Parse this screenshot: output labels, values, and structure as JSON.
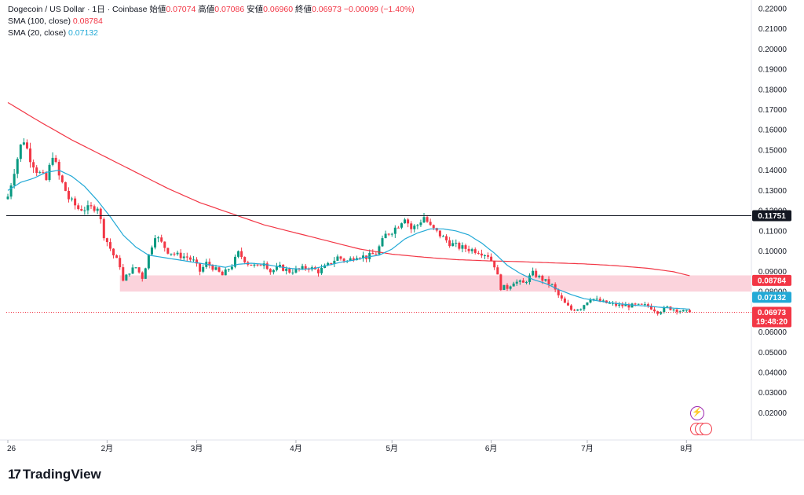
{
  "legend": {
    "symbol": "Dogecoin / US Dollar · 1日 · Coinbase",
    "open_label": "始値",
    "open": "0.07074",
    "high_label": "高値",
    "high": "0.07086",
    "low_label": "安値",
    "low": "0.06960",
    "close_label": "終値",
    "close": "0.06973",
    "change": "−0.00099 (−1.40%)",
    "sma100_label": "SMA (100, close)",
    "sma100_value": "0.08784",
    "sma20_label": "SMA (20, close)",
    "sma20_value": "0.07132"
  },
  "brand": {
    "name": "TradingView",
    "logo_icon": "tradingview-logo-icon"
  },
  "colors": {
    "up": "#089981",
    "down": "#f23645",
    "sma100": "#f23645",
    "sma20": "#22a9d6",
    "zone": "#fbd3dc",
    "hline": "#131722"
  },
  "chart_data": {
    "type": "candlestick",
    "title": "Dogecoin / US Dollar · 1日 · Coinbase",
    "y_ticks": [
      "0.22000",
      "0.21000",
      "0.20000",
      "0.19000",
      "0.18000",
      "0.17000",
      "0.16000",
      "0.15000",
      "0.14000",
      "0.13000",
      "0.12000",
      "0.11000",
      "0.10000",
      "0.09000",
      "0.08000",
      "0.07000",
      "0.06000",
      "0.05000",
      "0.04000",
      "0.03000",
      "0.02000"
    ],
    "y_range": [
      0.01512,
      0.2215
    ],
    "x_tick_labels": [
      "26",
      "2月",
      "3月",
      "4月",
      "5月",
      "6月",
      "7月",
      "8月"
    ],
    "x_tick_days": [
      0,
      31,
      59,
      90,
      120,
      151,
      181,
      212
    ],
    "last_day": 213,
    "horizontal_line": {
      "value": 0.11751,
      "label": "0.11751"
    },
    "zone": {
      "from": 0.08,
      "to": 0.088,
      "start_day": 35
    },
    "price_tags": [
      {
        "label": "0.08784",
        "value": 0.08784,
        "color": "#f23645"
      },
      {
        "label": "0.07132",
        "value": 0.07132,
        "color": "#22a9d6"
      },
      {
        "label": "0.06973",
        "value": 0.06973,
        "color": "#f23645",
        "sub": "19:48:20"
      }
    ],
    "close_anchors": [
      [
        0,
        0.127
      ],
      [
        2,
        0.14
      ],
      [
        4,
        0.152
      ],
      [
        5,
        0.155
      ],
      [
        7,
        0.146
      ],
      [
        9,
        0.14
      ],
      [
        12,
        0.135
      ],
      [
        14,
        0.148
      ],
      [
        16,
        0.137
      ],
      [
        18,
        0.13
      ],
      [
        19,
        0.126
      ],
      [
        22,
        0.121
      ],
      [
        25,
        0.121
      ],
      [
        28,
        0.122
      ],
      [
        30,
        0.108
      ],
      [
        33,
        0.098
      ],
      [
        35,
        0.093
      ],
      [
        36,
        0.085
      ],
      [
        38,
        0.09
      ],
      [
        40,
        0.092
      ],
      [
        42,
        0.087
      ],
      [
        44,
        0.098
      ],
      [
        46,
        0.108
      ],
      [
        48,
        0.104
      ],
      [
        50,
        0.1
      ],
      [
        53,
        0.098
      ],
      [
        56,
        0.097
      ],
      [
        58,
        0.095
      ],
      [
        60,
        0.09
      ],
      [
        62,
        0.094
      ],
      [
        64,
        0.092
      ],
      [
        67,
        0.088
      ],
      [
        70,
        0.093
      ],
      [
        72,
        0.099
      ],
      [
        75,
        0.094
      ],
      [
        78,
        0.092
      ],
      [
        80,
        0.095
      ],
      [
        82,
        0.09
      ],
      [
        85,
        0.092
      ],
      [
        88,
        0.09
      ],
      [
        91,
        0.091
      ],
      [
        94,
        0.092
      ],
      [
        97,
        0.09
      ],
      [
        100,
        0.093
      ],
      [
        103,
        0.097
      ],
      [
        106,
        0.095
      ],
      [
        109,
        0.098
      ],
      [
        112,
        0.097
      ],
      [
        115,
        0.099
      ],
      [
        118,
        0.108
      ],
      [
        120,
        0.11
      ],
      [
        122,
        0.113
      ],
      [
        124,
        0.117
      ],
      [
        126,
        0.111
      ],
      [
        128,
        0.113
      ],
      [
        130,
        0.117
      ],
      [
        132,
        0.112
      ],
      [
        135,
        0.108
      ],
      [
        138,
        0.104
      ],
      [
        141,
        0.102
      ],
      [
        144,
        0.101
      ],
      [
        147,
        0.1
      ],
      [
        150,
        0.098
      ],
      [
        152,
        0.093
      ],
      [
        154,
        0.082
      ],
      [
        156,
        0.082
      ],
      [
        158,
        0.085
      ],
      [
        161,
        0.084
      ],
      [
        164,
        0.089
      ],
      [
        167,
        0.086
      ],
      [
        170,
        0.083
      ],
      [
        172,
        0.078
      ],
      [
        174,
        0.074
      ],
      [
        176,
        0.071
      ],
      [
        179,
        0.072
      ],
      [
        182,
        0.077
      ],
      [
        185,
        0.075
      ],
      [
        188,
        0.074
      ],
      [
        191,
        0.073
      ],
      [
        194,
        0.073
      ],
      [
        197,
        0.073
      ],
      [
        200,
        0.073
      ],
      [
        203,
        0.07
      ],
      [
        206,
        0.072
      ],
      [
        209,
        0.071
      ],
      [
        211,
        0.07
      ],
      [
        213,
        0.06973
      ]
    ],
    "sma100_anchors": [
      [
        0,
        0.1735
      ],
      [
        10,
        0.164
      ],
      [
        20,
        0.155
      ],
      [
        30,
        0.147
      ],
      [
        40,
        0.139
      ],
      [
        50,
        0.131
      ],
      [
        60,
        0.124
      ],
      [
        70,
        0.1185
      ],
      [
        80,
        0.113
      ],
      [
        90,
        0.109
      ],
      [
        100,
        0.105
      ],
      [
        110,
        0.101
      ],
      [
        120,
        0.0985
      ],
      [
        130,
        0.097
      ],
      [
        140,
        0.0958
      ],
      [
        150,
        0.0952
      ],
      [
        160,
        0.0948
      ],
      [
        170,
        0.0942
      ],
      [
        180,
        0.0937
      ],
      [
        190,
        0.0928
      ],
      [
        200,
        0.0915
      ],
      [
        208,
        0.0898
      ],
      [
        213,
        0.08784
      ]
    ],
    "sma20_anchors": [
      [
        0,
        0.13
      ],
      [
        4,
        0.134
      ],
      [
        8,
        0.136
      ],
      [
        12,
        0.139
      ],
      [
        16,
        0.14
      ],
      [
        20,
        0.137
      ],
      [
        24,
        0.132
      ],
      [
        28,
        0.125
      ],
      [
        32,
        0.117
      ],
      [
        36,
        0.108
      ],
      [
        40,
        0.102
      ],
      [
        44,
        0.098
      ],
      [
        48,
        0.097
      ],
      [
        52,
        0.096
      ],
      [
        56,
        0.095
      ],
      [
        60,
        0.094
      ],
      [
        64,
        0.093
      ],
      [
        68,
        0.092
      ],
      [
        72,
        0.0935
      ],
      [
        76,
        0.094
      ],
      [
        80,
        0.0935
      ],
      [
        84,
        0.0925
      ],
      [
        88,
        0.0915
      ],
      [
        92,
        0.091
      ],
      [
        96,
        0.0915
      ],
      [
        100,
        0.093
      ],
      [
        104,
        0.0945
      ],
      [
        108,
        0.0955
      ],
      [
        112,
        0.097
      ],
      [
        116,
        0.098
      ],
      [
        120,
        0.101
      ],
      [
        124,
        0.106
      ],
      [
        128,
        0.109
      ],
      [
        132,
        0.111
      ],
      [
        136,
        0.111
      ],
      [
        140,
        0.11
      ],
      [
        144,
        0.108
      ],
      [
        148,
        0.104
      ],
      [
        152,
        0.099
      ],
      [
        156,
        0.093
      ],
      [
        160,
        0.089
      ],
      [
        164,
        0.086
      ],
      [
        168,
        0.084
      ],
      [
        172,
        0.081
      ],
      [
        176,
        0.0785
      ],
      [
        180,
        0.0765
      ],
      [
        184,
        0.0755
      ],
      [
        188,
        0.0745
      ],
      [
        192,
        0.0738
      ],
      [
        196,
        0.0732
      ],
      [
        200,
        0.0728
      ],
      [
        204,
        0.0722
      ],
      [
        208,
        0.0718
      ],
      [
        213,
        0.07132
      ]
    ]
  }
}
